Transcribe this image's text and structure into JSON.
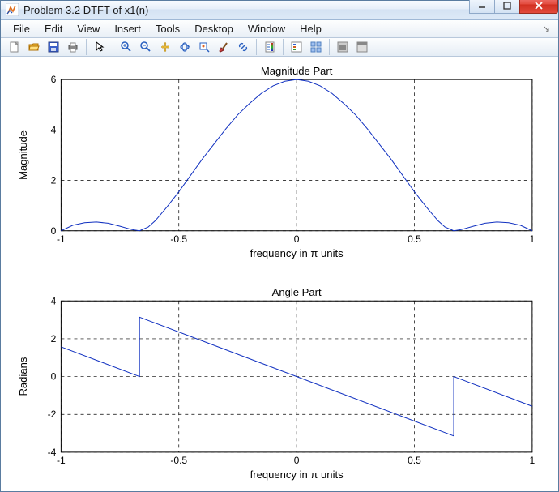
{
  "window": {
    "title": "Problem 3.2 DTFT of x1(n)"
  },
  "menubar": {
    "items": [
      "File",
      "Edit",
      "View",
      "Insert",
      "Tools",
      "Desktop",
      "Window",
      "Help"
    ]
  },
  "toolbar": {
    "groups": [
      [
        "new-file",
        "open-file",
        "save",
        "print"
      ],
      [
        "pointer"
      ],
      [
        "zoom-in",
        "zoom-out",
        "pan",
        "rotate-3d",
        "data-cursor",
        "brush",
        "link"
      ],
      [
        "insert-colorbar"
      ],
      [
        "insert-legend",
        "tile"
      ],
      [
        "hide-plot-tools",
        "dock"
      ]
    ],
    "icons": {
      "new-file": "new",
      "open-file": "open",
      "save": "save",
      "print": "print",
      "pointer": "pointer",
      "zoom-in": "zoomin",
      "zoom-out": "zoomout",
      "pan": "pan",
      "rotate-3d": "rotate",
      "data-cursor": "cursor",
      "brush": "brush",
      "link": "link",
      "insert-colorbar": "colorbar",
      "insert-legend": "legend",
      "tile": "tile",
      "hide-plot-tools": "hide",
      "dock": "dock"
    }
  },
  "figure": {
    "background": "#ffffff",
    "subplot_gap": 48,
    "subplots": [
      {
        "title": "Magnitude Part",
        "xlabel": "frequency in π units",
        "ylabel": "Magnitude",
        "xlim": [
          -1,
          1
        ],
        "ylim": [
          0,
          6
        ],
        "xticks": [
          -1,
          -0.5,
          0,
          0.5,
          1
        ],
        "yticks": [
          0,
          2,
          4,
          6
        ],
        "line_color": "#1030c0",
        "grid_color": "#000000",
        "grid_dash": "4 4",
        "type": "line",
        "data": [
          [
            -1.0,
            0.0
          ],
          [
            -0.95,
            0.22
          ],
          [
            -0.9,
            0.32
          ],
          [
            -0.85,
            0.35
          ],
          [
            -0.8,
            0.3
          ],
          [
            -0.75,
            0.18
          ],
          [
            -0.7,
            0.05
          ],
          [
            -0.667,
            0.0
          ],
          [
            -0.63,
            0.15
          ],
          [
            -0.6,
            0.4
          ],
          [
            -0.55,
            0.95
          ],
          [
            -0.5,
            1.55
          ],
          [
            -0.45,
            2.2
          ],
          [
            -0.4,
            2.85
          ],
          [
            -0.35,
            3.45
          ],
          [
            -0.3,
            4.05
          ],
          [
            -0.25,
            4.6
          ],
          [
            -0.2,
            5.05
          ],
          [
            -0.15,
            5.45
          ],
          [
            -0.1,
            5.75
          ],
          [
            -0.05,
            5.93
          ],
          [
            0.0,
            6.0
          ],
          [
            0.05,
            5.93
          ],
          [
            0.1,
            5.75
          ],
          [
            0.15,
            5.45
          ],
          [
            0.2,
            5.05
          ],
          [
            0.25,
            4.6
          ],
          [
            0.3,
            4.05
          ],
          [
            0.35,
            3.45
          ],
          [
            0.4,
            2.85
          ],
          [
            0.45,
            2.2
          ],
          [
            0.5,
            1.55
          ],
          [
            0.55,
            0.95
          ],
          [
            0.6,
            0.4
          ],
          [
            0.63,
            0.15
          ],
          [
            0.667,
            0.0
          ],
          [
            0.7,
            0.05
          ],
          [
            0.75,
            0.18
          ],
          [
            0.8,
            0.3
          ],
          [
            0.85,
            0.35
          ],
          [
            0.9,
            0.32
          ],
          [
            0.95,
            0.22
          ],
          [
            1.0,
            0.0
          ]
        ]
      },
      {
        "title": "Angle Part",
        "xlabel": "frequency in π units",
        "ylabel": "Radians",
        "xlim": [
          -1,
          1
        ],
        "ylim": [
          -4,
          4
        ],
        "xticks": [
          -1,
          -0.5,
          0,
          0.5,
          1
        ],
        "yticks": [
          -4,
          -2,
          0,
          2,
          4
        ],
        "line_color": "#1030c0",
        "grid_color": "#000000",
        "grid_dash": "4 4",
        "type": "line",
        "data": [
          [
            -1.0,
            1.571
          ],
          [
            -0.667,
            0.0
          ],
          [
            -0.667,
            3.14
          ],
          [
            0.667,
            -3.14
          ],
          [
            0.667,
            0.0
          ],
          [
            1.0,
            -1.571
          ]
        ]
      }
    ]
  }
}
